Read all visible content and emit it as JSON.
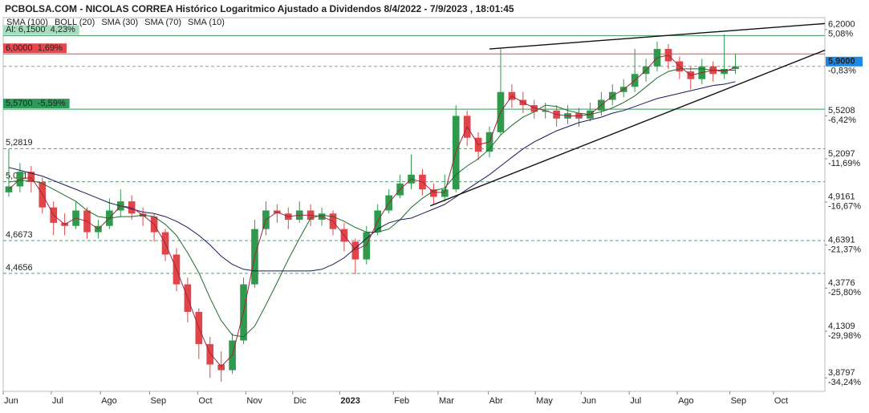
{
  "chart_data": {
    "type": "candlestick",
    "title": "PCBOLSA.COM - NICOLAS CORREA Histórico Logaritmico Ajustado a Dividendos 8/4/2022 - 7/9/2023 , 18:01:45",
    "log_scale": true,
    "up_color": "#2f9a4c",
    "down_color": "#e0454a",
    "xlim": [
      0,
      73.5
    ],
    "ylim": [
      3.81,
      6.3
    ],
    "xticks": [
      {
        "value": 0,
        "label": "Jun"
      },
      {
        "value": 4.3,
        "label": "Jul"
      },
      {
        "value": 8.7,
        "label": "Ago"
      },
      {
        "value": 13.1,
        "label": "Sep"
      },
      {
        "value": 17.4,
        "label": "Oct"
      },
      {
        "value": 21.7,
        "label": "Nov"
      },
      {
        "value": 25.9,
        "label": "Dic"
      },
      {
        "value": 30.1,
        "label": "2023"
      },
      {
        "value": 34.9,
        "label": "Feb"
      },
      {
        "value": 38.9,
        "label": "Mar"
      },
      {
        "value": 43.4,
        "label": "Abr"
      },
      {
        "value": 47.6,
        "label": "May"
      },
      {
        "value": 51.7,
        "label": "Jun"
      },
      {
        "value": 56.0,
        "label": "Jul"
      },
      {
        "value": 60.3,
        "label": "Ago"
      },
      {
        "value": 65.0,
        "label": "Sep"
      },
      {
        "value": 68.9,
        "label": "Oct"
      }
    ],
    "yticks": [
      {
        "value": 6.2,
        "label": "6,2000",
        "change": "5,08%"
      },
      {
        "value": 5.5208,
        "label": "5,5208",
        "change": "-6,42%"
      },
      {
        "value": 5.2097,
        "label": "5,2097",
        "change": "-11,69%"
      },
      {
        "value": 4.9161,
        "label": "4,9161",
        "change": "-16,67%"
      },
      {
        "value": 4.6391,
        "label": "4,6391",
        "change": "-21,37%"
      },
      {
        "value": 4.3776,
        "label": "4,3776",
        "change": "-25,80%"
      },
      {
        "value": 4.1309,
        "label": "4,1309",
        "change": "-29,98%"
      },
      {
        "value": 3.8797,
        "label": "3,8797",
        "change": "-34,24%"
      }
    ],
    "last": {
      "value": 5.9,
      "label": "5,9000",
      "change": "-0,83%",
      "color": "#1e88e5"
    },
    "levels": [
      {
        "value": 6.15,
        "label": "Al: 6,1500  4,23%",
        "color": "#3a9a5a",
        "fill": "#a8dcc0",
        "text_color": "#222",
        "line": "solid"
      },
      {
        "value": 6.0,
        "label": "6,0000  1,69%",
        "color": "#e8484c",
        "fill": "#e8484c",
        "text_color": "#fff",
        "line": "solid"
      },
      {
        "value": 5.57,
        "label": "5,5700  -5,59%",
        "color": "#2e9a5a",
        "fill": "#2e9a5a",
        "text_color": "#fff",
        "line": "solid"
      },
      {
        "value": 5.2819,
        "label": "5,2819",
        "color": "#5a9a7a",
        "line": "dashed"
      },
      {
        "value": 5.0514,
        "label": "5,0514",
        "color": "#5a9a7a",
        "line": "dashed"
      },
      {
        "value": 4.6673,
        "label": "4,6673",
        "color": "#5a9a7a",
        "line": "dashed"
      },
      {
        "value": 4.4656,
        "label": "4,4656",
        "color": "#5a9a7a",
        "line": "dashed"
      }
    ],
    "trendlines": [
      {
        "x": [
          43.5,
          73.5
        ],
        "y": [
          6.04,
          6.25
        ]
      },
      {
        "x": [
          38.2,
          73.5
        ],
        "y": [
          4.89,
          6.03
        ]
      }
    ],
    "x": [
      0.5,
      1.5,
      2.5,
      3.5,
      4.5,
      5.5,
      6.5,
      7.5,
      8.5,
      9.5,
      10.5,
      11.5,
      12.5,
      13.5,
      14.5,
      15.5,
      16.5,
      17.5,
      18.5,
      19.5,
      20.5,
      21.5,
      22.5,
      23.5,
      24.5,
      25.5,
      26.5,
      27.5,
      28.5,
      29.5,
      30.5,
      31.5,
      32.5,
      33.5,
      34.5,
      35.5,
      36.5,
      37.5,
      38.5,
      39.5,
      40.5,
      41.5,
      42.5,
      43.5,
      44.5,
      45.5,
      46.5,
      47.5,
      48.5,
      49.5,
      50.5,
      51.5,
      52.5,
      53.5,
      54.5,
      55.5,
      56.5,
      57.5,
      58.5,
      59.5,
      60.5,
      61.5,
      62.5,
      63.5,
      64.5,
      65.5
    ],
    "open": [
      4.98,
      5.02,
      5.12,
      5.05,
      4.88,
      4.78,
      4.76,
      4.86,
      4.72,
      4.76,
      4.86,
      4.92,
      4.84,
      4.82,
      4.72,
      4.58,
      4.4,
      4.24,
      4.06,
      3.95,
      3.92,
      4.08,
      4.4,
      4.74,
      4.86,
      4.84,
      4.8,
      4.86,
      4.8,
      4.84,
      4.74,
      4.66,
      4.55,
      4.72,
      4.86,
      4.96,
      5.04,
      5.1,
      5.0,
      4.95,
      5.0,
      5.52,
      5.36,
      5.26,
      5.4,
      5.7,
      5.64,
      5.6,
      5.55,
      5.56,
      5.5,
      5.54,
      5.5,
      5.56,
      5.64,
      5.7,
      5.74,
      5.84,
      5.9,
      6.04,
      5.94,
      5.86,
      5.8,
      5.9,
      5.84,
      5.88
    ],
    "high": [
      5.28,
      5.18,
      5.16,
      5.08,
      4.92,
      4.84,
      4.92,
      4.88,
      4.8,
      4.94,
      5.0,
      4.96,
      4.88,
      4.84,
      4.74,
      4.62,
      4.44,
      4.26,
      4.1,
      4.02,
      4.12,
      4.44,
      4.8,
      4.92,
      4.9,
      4.88,
      4.92,
      4.9,
      4.88,
      4.86,
      4.78,
      4.68,
      4.76,
      4.9,
      5.0,
      5.1,
      5.24,
      5.14,
      5.04,
      5.1,
      5.6,
      5.56,
      5.4,
      5.44,
      6.04,
      5.76,
      5.7,
      5.64,
      5.62,
      5.6,
      5.6,
      5.58,
      5.62,
      5.7,
      5.76,
      5.8,
      6.04,
      5.96,
      6.1,
      6.08,
      5.98,
      5.9,
      5.96,
      5.94,
      6.16,
      6.0
    ],
    "low": [
      4.95,
      4.98,
      4.98,
      4.84,
      4.7,
      4.7,
      4.74,
      4.68,
      4.68,
      4.74,
      4.82,
      4.8,
      4.76,
      4.66,
      4.54,
      4.36,
      4.18,
      3.98,
      3.88,
      3.86,
      3.9,
      4.06,
      4.38,
      4.7,
      4.78,
      4.74,
      4.78,
      4.76,
      4.76,
      4.7,
      4.6,
      4.46,
      4.52,
      4.7,
      4.84,
      4.94,
      5.0,
      4.96,
      4.9,
      4.92,
      4.98,
      5.3,
      5.2,
      5.22,
      5.38,
      5.58,
      5.54,
      5.5,
      5.5,
      5.44,
      5.46,
      5.44,
      5.48,
      5.52,
      5.6,
      5.66,
      5.7,
      5.78,
      5.86,
      5.88,
      5.8,
      5.72,
      5.76,
      5.78,
      5.8,
      5.84
    ],
    "close": [
      5.02,
      5.12,
      5.05,
      4.88,
      4.78,
      4.76,
      4.86,
      4.72,
      4.76,
      4.86,
      4.92,
      4.84,
      4.82,
      4.72,
      4.58,
      4.4,
      4.24,
      4.06,
      3.95,
      3.92,
      4.08,
      4.4,
      4.74,
      4.86,
      4.84,
      4.8,
      4.86,
      4.8,
      4.84,
      4.74,
      4.66,
      4.55,
      4.72,
      4.86,
      4.96,
      5.04,
      5.1,
      5.0,
      4.95,
      5.0,
      5.52,
      5.36,
      5.26,
      5.4,
      5.7,
      5.64,
      5.6,
      5.55,
      5.56,
      5.5,
      5.54,
      5.5,
      5.56,
      5.64,
      5.7,
      5.74,
      5.84,
      5.9,
      6.04,
      5.94,
      5.86,
      5.8,
      5.9,
      5.84,
      5.88,
      5.9
    ],
    "series": [
      {
        "name": "SMA (100)",
        "color": "#a9cde8"
      },
      {
        "name": "BOLL (20)",
        "color": "#cfe3f3"
      },
      {
        "name": "SMA (30)",
        "color": "#1f6b2a",
        "values": [
          5.05,
          5.06,
          5.06,
          5.04,
          5.0,
          4.96,
          4.92,
          4.86,
          4.82,
          4.81,
          4.82,
          4.82,
          4.83,
          4.82,
          4.77,
          4.7,
          4.59,
          4.47,
          4.32,
          4.19,
          4.11,
          4.1,
          4.16,
          4.28,
          4.41,
          4.55,
          4.68,
          4.81,
          4.83,
          4.82,
          4.79,
          4.75,
          4.72,
          4.72,
          4.74,
          4.8,
          4.88,
          4.94,
          4.99,
          5.01,
          5.1,
          5.16,
          5.21,
          5.28,
          5.38,
          5.45,
          5.51,
          5.55,
          5.6,
          5.59,
          5.56,
          5.54,
          5.53,
          5.55,
          5.58,
          5.62,
          5.67,
          5.74,
          5.81,
          5.86,
          5.88,
          5.88,
          5.88,
          5.87,
          5.87,
          5.87
        ]
      },
      {
        "name": "SMA (70)",
        "color": "#1a1a5e",
        "values": [
          5.15,
          5.13,
          5.11,
          5.09,
          5.06,
          5.03,
          5.0,
          4.97,
          4.94,
          4.91,
          4.89,
          4.87,
          4.85,
          4.84,
          4.82,
          4.79,
          4.75,
          4.7,
          4.64,
          4.57,
          4.52,
          4.49,
          4.48,
          4.48,
          4.48,
          4.48,
          4.48,
          4.48,
          4.49,
          4.52,
          4.56,
          4.62,
          4.68,
          4.74,
          4.78,
          4.8,
          4.81,
          4.84,
          4.87,
          4.9,
          4.95,
          5.0,
          5.05,
          5.1,
          5.16,
          5.22,
          5.28,
          5.33,
          5.37,
          5.41,
          5.44,
          5.47,
          5.49,
          5.51,
          5.54,
          5.56,
          5.59,
          5.62,
          5.65,
          5.67,
          5.69,
          5.71,
          5.73,
          5.75,
          5.76,
          5.78
        ]
      },
      {
        "name": "SMA (10)",
        "color": "#a0243c",
        "values": [
          5.0,
          5.07,
          5.08,
          4.97,
          4.83,
          4.77,
          4.81,
          4.79,
          4.74,
          4.81,
          4.89,
          4.88,
          4.83,
          4.77,
          4.65,
          4.49,
          4.32,
          4.15,
          4.01,
          3.94,
          4.0,
          4.24,
          4.57,
          4.8,
          4.85,
          4.82,
          4.83,
          4.83,
          4.82,
          4.79,
          4.7,
          4.61,
          4.64,
          4.79,
          4.91,
          5.0,
          5.07,
          5.05,
          4.98,
          4.98,
          5.26,
          5.44,
          5.31,
          5.33,
          5.55,
          5.67,
          5.62,
          5.58,
          5.56,
          5.53,
          5.52,
          5.52,
          5.53,
          5.6,
          5.67,
          5.72,
          5.79,
          5.87,
          5.97,
          5.99,
          5.9,
          5.83,
          5.85,
          5.87,
          5.86,
          5.89
        ]
      }
    ]
  }
}
